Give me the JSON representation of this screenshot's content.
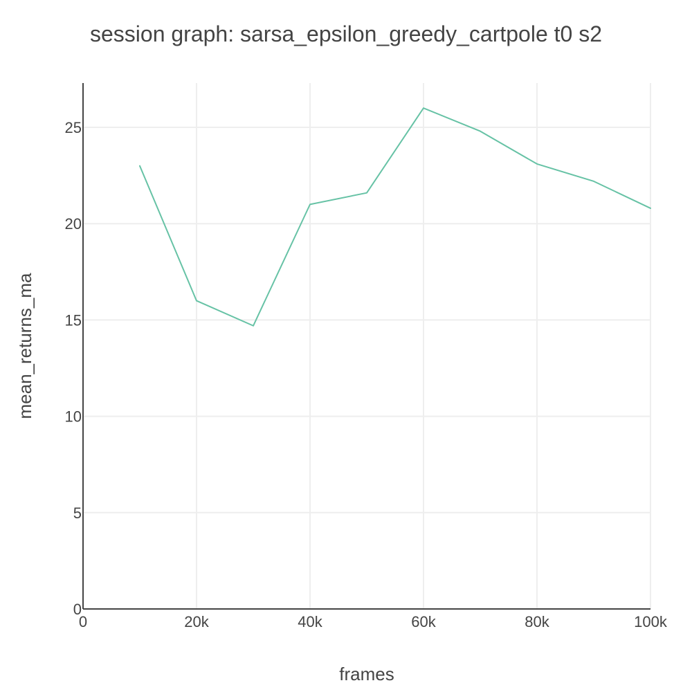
{
  "chart_data": {
    "type": "line",
    "title": "session graph: sarsa_epsilon_greedy_cartpole t0 s2",
    "xlabel": "frames",
    "ylabel": "mean_returns_ma",
    "xlim": [
      0,
      100000
    ],
    "ylim": [
      0,
      27.3
    ],
    "x_ticks": [
      0,
      20000,
      40000,
      60000,
      80000,
      100000
    ],
    "x_tick_labels": [
      "0",
      "20k",
      "40k",
      "60k",
      "80k",
      "100k"
    ],
    "y_ticks": [
      0,
      5,
      10,
      15,
      20,
      25
    ],
    "y_tick_labels": [
      "0",
      "5",
      "10",
      "15",
      "20",
      "25"
    ],
    "grid": true,
    "series": [
      {
        "color": "#66c2a5",
        "x": [
          10000,
          20000,
          30000,
          40000,
          50000,
          60000,
          70000,
          80000,
          90000,
          100000
        ],
        "y": [
          23.0,
          16.0,
          14.7,
          21.0,
          21.6,
          26.0,
          24.8,
          23.1,
          22.2,
          20.8
        ]
      }
    ]
  }
}
